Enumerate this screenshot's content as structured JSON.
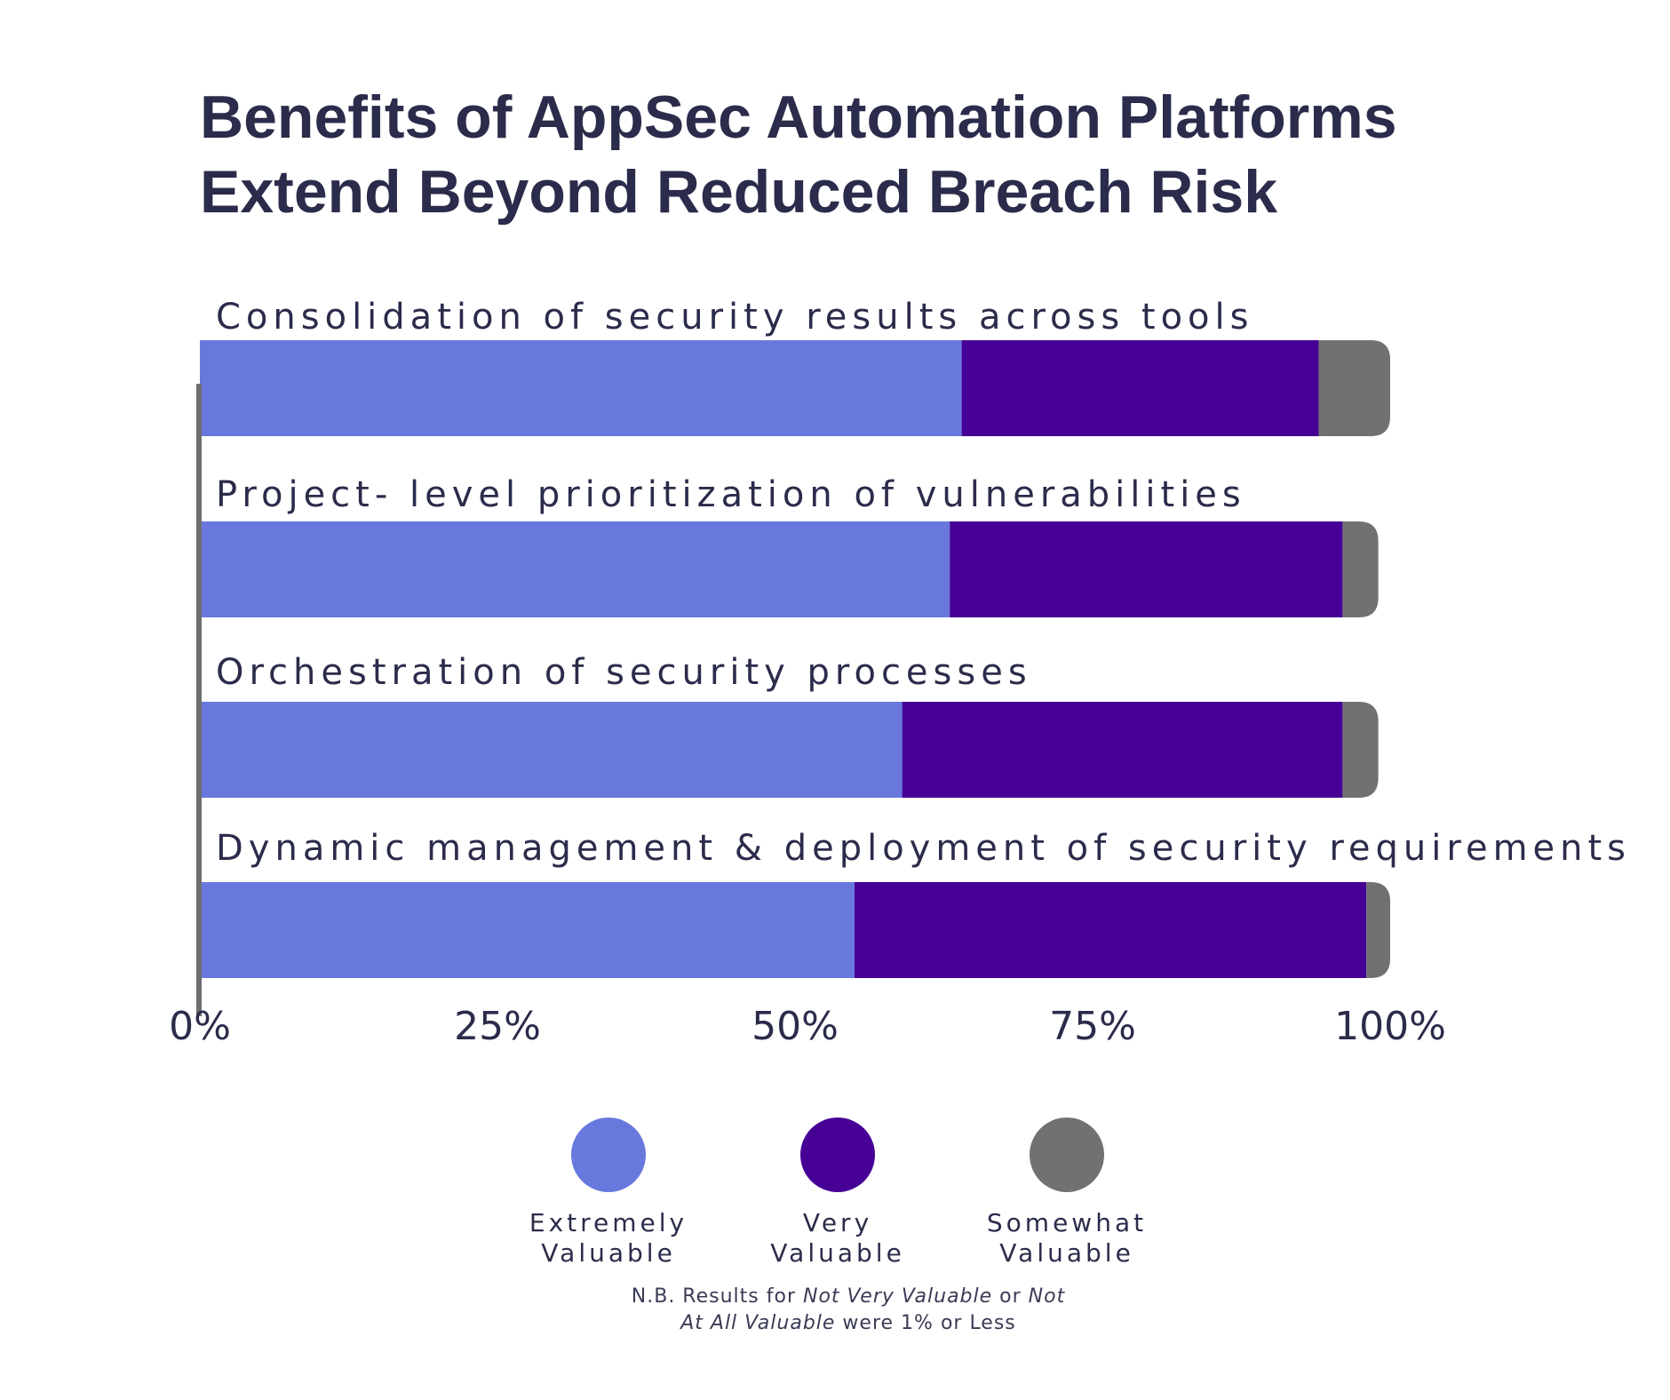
{
  "title_lines": [
    "Benefits of AppSec Automation Platforms",
    "Extend Beyond Reduced Breach Risk"
  ],
  "note": {
    "line1": [
      {
        "text": "N.B. Results for ",
        "italic": false
      },
      {
        "text": "Not Very Valuable",
        "italic": true
      },
      {
        "text": " or ",
        "italic": false
      },
      {
        "text": "Not",
        "italic": true
      }
    ],
    "line2": [
      {
        "text": "At All Valuable",
        "italic": true
      },
      {
        "text": " were 1% or Less",
        "italic": false
      }
    ]
  },
  "chart_data": {
    "type": "bar",
    "orientation": "horizontal",
    "stacked": true,
    "categories": [
      "Consolidation of security results across tools",
      "Project- level prioritization of vulnerabilities",
      "Orchestration of security processes",
      "Dynamic management & deployment of security requirements"
    ],
    "series": [
      {
        "name": "Extremely Valuable",
        "legend_lines": [
          "Extremely",
          "Valuable"
        ],
        "color": "#6878dd",
        "values": [
          64,
          63,
          59,
          55
        ]
      },
      {
        "name": "Very Valuable",
        "legend_lines": [
          "Very",
          "Valuable"
        ],
        "color": "#460096",
        "values": [
          30,
          33,
          37,
          43
        ]
      },
      {
        "name": "Somewhat Valuable",
        "legend_lines": [
          "Somewhat",
          "Valuable"
        ],
        "color": "#717171",
        "values": [
          6,
          3,
          3,
          2
        ]
      }
    ],
    "xlim": [
      0,
      100
    ],
    "xticks": [
      0,
      25,
      50,
      75,
      100
    ],
    "tick_labels": [
      "0%",
      "25%",
      "50%",
      "75%",
      "100%"
    ],
    "grid": false,
    "legend_position": "bottom"
  }
}
